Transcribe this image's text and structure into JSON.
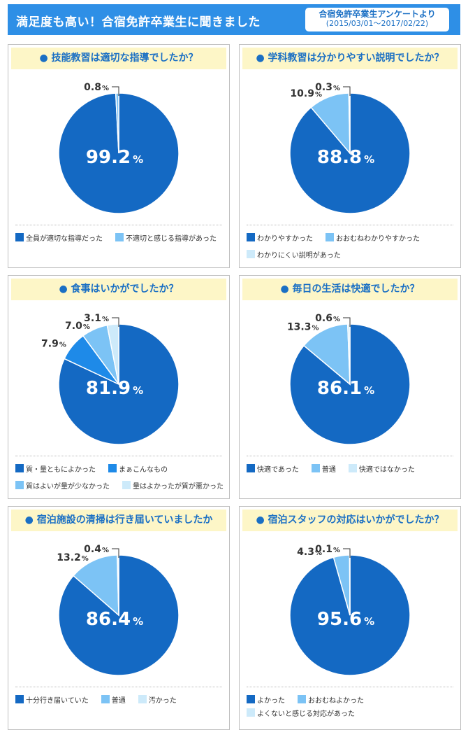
{
  "header": {
    "title": "満足度も高い！合宿免許卒業生に聞きました",
    "badge_line1": "合宿免許卒業生アンケートより",
    "badge_line2": "(2015/03/01～2017/02/22)"
  },
  "colors": {
    "dark_blue": "#1469c3",
    "mid_blue": "#1e8ae8",
    "light_blue": "#7cc3f5",
    "pale_blue": "#cdeafa"
  },
  "chart_data": [
    {
      "type": "pie",
      "title": "技能教習は適切な指導でしたか？",
      "slices": [
        {
          "label": "全員が適切な指導だった",
          "value": 99.2
        },
        {
          "label": "不適切と感じる指導があった",
          "value": 0.8
        }
      ],
      "legend_rows": [
        [
          0,
          1
        ]
      ]
    },
    {
      "type": "pie",
      "title": "学科教習は分かりやすい説明でしたか？",
      "slices": [
        {
          "label": "わかりやすかった",
          "value": 88.8
        },
        {
          "label": "おおむねわかりやすかった",
          "value": 10.9
        },
        {
          "label": "わかりにくい説明があった",
          "value": 0.3
        }
      ],
      "legend_rows": [
        [
          0,
          1
        ],
        [
          2
        ]
      ]
    },
    {
      "type": "pie",
      "title": "食事はいかがでしたか？",
      "slices": [
        {
          "label": "質・量ともによかった",
          "value": 81.9
        },
        {
          "label": "まぁこんなもの",
          "value": 7.9
        },
        {
          "label": "質はよいが量が少なかった",
          "value": 7.0
        },
        {
          "label": "量はよかったが質が悪かった",
          "value": 3.1
        }
      ],
      "legend_rows": [
        [
          0,
          1
        ],
        [
          2,
          3
        ]
      ]
    },
    {
      "type": "pie",
      "title": "毎日の生活は快適でしたか？",
      "slices": [
        {
          "label": "快適であった",
          "value": 86.1
        },
        {
          "label": "普通",
          "value": 13.3
        },
        {
          "label": "快適ではなかった",
          "value": 0.6
        }
      ],
      "legend_rows": [
        [
          0,
          1,
          2
        ]
      ]
    },
    {
      "type": "pie",
      "title": "宿泊施設の清掃は行き届いていましたか",
      "slices": [
        {
          "label": "十分行き届いていた",
          "value": 86.4
        },
        {
          "label": "普通",
          "value": 13.2
        },
        {
          "label": "汚かった",
          "value": 0.4
        }
      ],
      "legend_rows": [
        [
          0,
          1,
          2
        ]
      ]
    },
    {
      "type": "pie",
      "title": "宿泊スタッフの対応はいかがでしたか？",
      "slices": [
        {
          "label": "よかった",
          "value": 95.6
        },
        {
          "label": "おおむねよかった",
          "value": 4.3
        },
        {
          "label": "よくないと感じる対応があった",
          "value": 0.1
        }
      ],
      "legend_rows": [
        [
          0,
          1,
          2
        ]
      ]
    }
  ]
}
